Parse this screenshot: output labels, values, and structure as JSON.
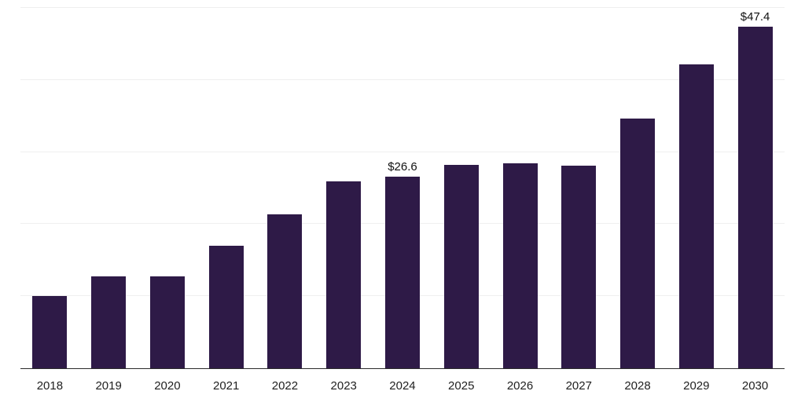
{
  "chart_data": {
    "type": "bar",
    "title": "",
    "xlabel": "",
    "ylabel": "",
    "categories": [
      "2018",
      "2019",
      "2020",
      "2021",
      "2022",
      "2023",
      "2024",
      "2025",
      "2026",
      "2027",
      "2028",
      "2029",
      "2030"
    ],
    "values": [
      10.0,
      12.7,
      12.8,
      17.0,
      21.3,
      25.9,
      26.6,
      28.2,
      28.4,
      28.1,
      34.6,
      42.2,
      47.4
    ],
    "point_labels": [
      "",
      "",
      "",
      "",
      "",
      "",
      "$26.6",
      "",
      "",
      "",
      "",
      "",
      "$47.4"
    ],
    "ylim": [
      0,
      50
    ],
    "gridlines": [
      10,
      20,
      30,
      40,
      50
    ],
    "legend": "none",
    "bar_color": "#2e1a47",
    "gridline_color": "#efefef",
    "axis_line_color": "#2b2b2b",
    "label_color": "#111111",
    "tick_color": "#1f1f1f",
    "background_color": "#ffffff"
  }
}
